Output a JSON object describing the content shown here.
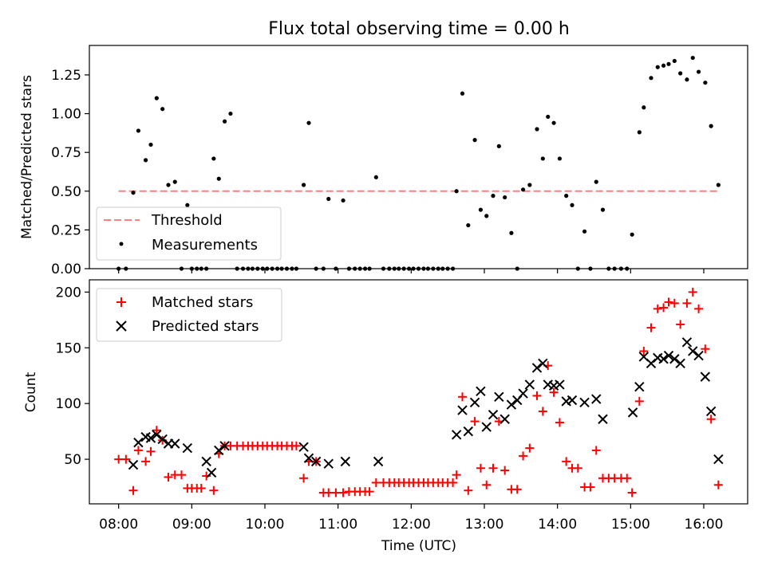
{
  "title": "Flux total observing time = 0.00 h",
  "chart_data": [
    {
      "type": "scatter",
      "ylabel": "Matched/Predicted stars",
      "xlabel": "",
      "xlim_hours": [
        7.6,
        16.6
      ],
      "ylim": [
        0,
        1.44
      ],
      "yticks": [
        0.0,
        0.25,
        0.5,
        0.75,
        1.0,
        1.25
      ],
      "ytick_labels": [
        "0.00",
        "0.25",
        "0.50",
        "0.75",
        "1.00",
        "1.25"
      ],
      "threshold": {
        "value": 0.5,
        "x_range_hours": [
          8.0,
          16.2
        ],
        "color": "#ff8080"
      },
      "legend": [
        "Threshold",
        "Measurements"
      ],
      "legend_position": "lower-left",
      "series": [
        {
          "name": "Measurements",
          "marker": "dot",
          "color": "#000000",
          "x": [
            8.0,
            8.1,
            8.2,
            8.27,
            8.37,
            8.44,
            8.52,
            8.6,
            8.68,
            8.77,
            8.86,
            8.94,
            9.0,
            9.07,
            9.13,
            9.2,
            9.3,
            9.37,
            9.45,
            9.53,
            9.62,
            9.7,
            9.77,
            9.83,
            9.9,
            9.97,
            10.03,
            10.1,
            10.17,
            10.23,
            10.3,
            10.37,
            10.43,
            10.53,
            10.6,
            10.7,
            10.8,
            10.87,
            10.97,
            11.07,
            11.15,
            11.23,
            11.3,
            11.37,
            11.43,
            11.52,
            11.62,
            11.7,
            11.77,
            11.83,
            11.9,
            11.97,
            12.03,
            12.1,
            12.17,
            12.23,
            12.3,
            12.37,
            12.43,
            12.5,
            12.57,
            12.62,
            12.7,
            12.78,
            12.87,
            12.95,
            13.03,
            13.12,
            13.2,
            13.28,
            13.37,
            13.45,
            13.53,
            13.62,
            13.72,
            13.8,
            13.87,
            13.95,
            14.03,
            14.12,
            14.2,
            14.28,
            14.37,
            14.45,
            14.53,
            14.62,
            14.7,
            14.78,
            14.87,
            14.95,
            15.02,
            15.12,
            15.18,
            15.28,
            15.37,
            15.45,
            15.52,
            15.6,
            15.68,
            15.77,
            15.85,
            15.93,
            16.02,
            16.1,
            16.2
          ],
          "y": [
            0.0,
            0.0,
            0.49,
            0.89,
            0.7,
            0.8,
            1.1,
            1.03,
            0.54,
            0.56,
            0.0,
            0.41,
            0.0,
            0.0,
            0.0,
            0.0,
            0.71,
            0.58,
            0.95,
            1.0,
            0.0,
            0.0,
            0.0,
            0.0,
            0.0,
            0.0,
            0.0,
            0.0,
            0.0,
            0.0,
            0.0,
            0.0,
            0.0,
            0.54,
            0.94,
            0.0,
            0.0,
            0.45,
            0.0,
            0.44,
            0.0,
            0.0,
            0.0,
            0.0,
            0.0,
            0.59,
            0.0,
            0.0,
            0.0,
            0.0,
            0.0,
            0.0,
            0.0,
            0.0,
            0.0,
            0.0,
            0.0,
            0.0,
            0.0,
            0.0,
            0.0,
            0.5,
            1.13,
            0.28,
            0.83,
            0.38,
            0.34,
            0.47,
            0.79,
            0.46,
            0.23,
            0.0,
            0.51,
            0.54,
            0.9,
            0.71,
            0.98,
            0.94,
            0.71,
            0.47,
            0.41,
            0.0,
            0.24,
            0.0,
            0.56,
            0.38,
            0.0,
            0.0,
            0.0,
            0.0,
            0.22,
            0.88,
            1.04,
            1.23,
            1.3,
            1.31,
            1.32,
            1.34,
            1.26,
            1.22,
            1.36,
            1.27,
            1.2,
            0.92,
            0.54
          ]
        }
      ]
    },
    {
      "type": "scatter",
      "ylabel": "Count",
      "xlabel": "Time (UTC)",
      "xlim_hours": [
        7.6,
        16.6
      ],
      "ylim": [
        10,
        211
      ],
      "yticks": [
        50,
        100,
        150,
        200
      ],
      "ytick_labels": [
        "50",
        "100",
        "150",
        "200"
      ],
      "xtick_hours": [
        8,
        9,
        10,
        11,
        12,
        13,
        14,
        15,
        16
      ],
      "xtick_labels": [
        "08:00",
        "09:00",
        "10:00",
        "11:00",
        "12:00",
        "13:00",
        "14:00",
        "15:00",
        "16:00"
      ],
      "legend": [
        "Matched stars",
        "Predicted stars"
      ],
      "legend_position": "upper-left",
      "series": [
        {
          "name": "Matched stars",
          "marker": "plus",
          "color": "#ff0000",
          "x": [
            8.0,
            8.1,
            8.2,
            8.27,
            8.37,
            8.44,
            8.52,
            8.6,
            8.68,
            8.77,
            8.86,
            8.94,
            9.0,
            9.07,
            9.13,
            9.2,
            9.3,
            9.37,
            9.45,
            9.53,
            9.62,
            9.7,
            9.77,
            9.83,
            9.9,
            9.97,
            10.03,
            10.1,
            10.17,
            10.23,
            10.3,
            10.37,
            10.43,
            10.53,
            10.6,
            10.7,
            10.8,
            10.87,
            10.97,
            11.07,
            11.15,
            11.23,
            11.3,
            11.37,
            11.43,
            11.52,
            11.62,
            11.7,
            11.77,
            11.83,
            11.9,
            11.97,
            12.03,
            12.1,
            12.17,
            12.23,
            12.3,
            12.37,
            12.43,
            12.5,
            12.57,
            12.62,
            12.7,
            12.78,
            12.87,
            12.95,
            13.03,
            13.12,
            13.2,
            13.28,
            13.37,
            13.45,
            13.53,
            13.62,
            13.72,
            13.8,
            13.87,
            13.95,
            14.03,
            14.12,
            14.2,
            14.28,
            14.37,
            14.45,
            14.53,
            14.62,
            14.7,
            14.78,
            14.87,
            14.95,
            15.02,
            15.12,
            15.18,
            15.28,
            15.37,
            15.45,
            15.52,
            15.6,
            15.68,
            15.77,
            15.85,
            15.93,
            16.02,
            16.1,
            16.2
          ],
          "y": [
            50,
            50,
            22,
            58,
            48,
            57,
            76,
            67,
            34,
            36,
            36,
            24,
            24,
            24,
            24,
            35,
            22,
            55,
            62,
            62,
            62,
            62,
            62,
            62,
            62,
            62,
            62,
            62,
            62,
            62,
            62,
            62,
            62,
            33,
            48,
            48,
            20,
            20,
            20,
            20,
            21,
            21,
            21,
            21,
            21,
            29,
            29,
            29,
            29,
            29,
            29,
            29,
            29,
            29,
            29,
            29,
            29,
            29,
            29,
            29,
            29,
            36,
            106,
            22,
            84,
            42,
            27,
            42,
            84,
            40,
            23,
            23,
            53,
            60,
            107,
            93,
            134,
            110,
            83,
            48,
            42,
            42,
            25,
            25,
            58,
            33,
            33,
            33,
            33,
            33,
            20,
            102,
            147,
            168,
            185,
            186,
            191,
            190,
            171,
            190,
            200,
            185,
            149,
            86,
            27
          ]
        },
        {
          "name": "Predicted stars",
          "marker": "x",
          "color": "#000000",
          "x": [
            8.2,
            8.27,
            8.37,
            8.44,
            8.52,
            8.6,
            8.68,
            8.77,
            8.94,
            9.2,
            9.27,
            9.37,
            9.45,
            10.53,
            10.6,
            10.7,
            10.87,
            11.1,
            11.55,
            12.62,
            12.7,
            12.78,
            12.87,
            12.95,
            13.03,
            13.12,
            13.2,
            13.28,
            13.37,
            13.45,
            13.53,
            13.62,
            13.72,
            13.8,
            13.87,
            13.95,
            14.03,
            14.12,
            14.2,
            14.37,
            14.53,
            14.62,
            15.03,
            15.12,
            15.18,
            15.28,
            15.37,
            15.45,
            15.52,
            15.6,
            15.68,
            15.77,
            15.85,
            15.93,
            16.02,
            16.1,
            16.2
          ],
          "y": [
            45,
            65,
            70,
            69,
            72,
            68,
            64,
            64,
            60,
            48,
            38,
            58,
            62,
            61,
            51,
            48,
            46,
            48,
            48,
            72,
            94,
            75,
            101,
            111,
            79,
            90,
            106,
            86,
            99,
            103,
            109,
            117,
            132,
            136,
            117,
            116,
            117,
            102,
            103,
            101,
            104,
            86,
            92,
            115,
            142,
            136,
            141,
            140,
            143,
            140,
            136,
            155,
            147,
            143,
            124,
            93,
            50
          ]
        }
      ]
    }
  ]
}
